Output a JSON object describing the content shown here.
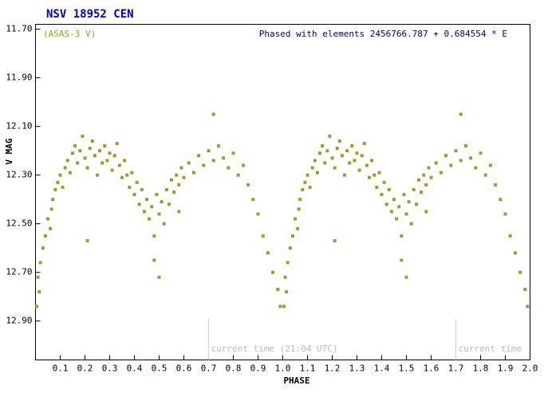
{
  "chart_data": {
    "type": "scatter",
    "title": "NSV 18952 CEN",
    "subtitle": "Phased with elements 2456766.787 + 0.684554 * E",
    "x_label": "PHASE",
    "y_label": "V MAG",
    "xlim": [
      0,
      2.0
    ],
    "ylim": [
      13.06,
      11.68
    ],
    "xticks": [
      0.1,
      0.2,
      0.3,
      0.4,
      0.5,
      0.6,
      0.7,
      0.8,
      0.9,
      {
        "value": 1,
        "label": "1.0"
      },
      1.1,
      1.2,
      1.3,
      1.4,
      1.5,
      1.6,
      1.7,
      1.8,
      1.9,
      {
        "value": 2,
        "label": "2.0"
      }
    ],
    "yticks": [
      {
        "value": 11.7,
        "label": "11.70"
      },
      {
        "value": 11.9,
        "label": "11.90"
      },
      {
        "value": 12.1,
        "label": "12.10"
      },
      {
        "value": 12.3,
        "label": "12.30"
      },
      {
        "value": 12.5,
        "label": "12.50"
      },
      {
        "value": 12.7,
        "label": "12.70"
      },
      {
        "value": 12.9,
        "label": "12.90"
      }
    ],
    "annotations": [
      {
        "x": 0.7,
        "text": "current time (21:04 UTC)"
      },
      {
        "x": 1.7,
        "text": "current time"
      }
    ],
    "series": [
      {
        "name": "(ASAS-3 V)",
        "color": "#a09a2a",
        "x": [
          0.005,
          0.01,
          0.015,
          0.02,
          0.03,
          0.04,
          0.05,
          0.06,
          0.065,
          0.07,
          0.08,
          0.09,
          0.1,
          0.11,
          0.12,
          0.13,
          0.14,
          0.15,
          0.16,
          0.17,
          0.18,
          0.19,
          0.2,
          0.21,
          0.22,
          0.23,
          0.24,
          0.25,
          0.26,
          0.27,
          0.28,
          0.29,
          0.3,
          0.31,
          0.32,
          0.33,
          0.34,
          0.35,
          0.36,
          0.37,
          0.38,
          0.39,
          0.4,
          0.41,
          0.42,
          0.43,
          0.44,
          0.45,
          0.46,
          0.47,
          0.48,
          0.49,
          0.5,
          0.51,
          0.52,
          0.53,
          0.54,
          0.55,
          0.56,
          0.57,
          0.58,
          0.59,
          0.6,
          0.62,
          0.64,
          0.66,
          0.68,
          0.7,
          0.72,
          0.74,
          0.76,
          0.78,
          0.8,
          0.82,
          0.84,
          0.86,
          0.88,
          0.9,
          0.92,
          0.94,
          0.96,
          0.98,
          0.99,
          0.21,
          0.5,
          0.48,
          0.72,
          0.58,
          1.005,
          1.01,
          1.015,
          1.02,
          1.03,
          1.04,
          1.05,
          1.06,
          1.065,
          1.07,
          1.08,
          1.09,
          1.1,
          1.11,
          1.12,
          1.13,
          1.14,
          1.15,
          1.16,
          1.17,
          1.18,
          1.19,
          1.2,
          1.21,
          1.22,
          1.23,
          1.24,
          1.25,
          1.26,
          1.27,
          1.28,
          1.29,
          1.3,
          1.31,
          1.32,
          1.33,
          1.34,
          1.35,
          1.36,
          1.37,
          1.38,
          1.39,
          1.4,
          1.41,
          1.42,
          1.43,
          1.44,
          1.45,
          1.46,
          1.47,
          1.48,
          1.49,
          1.5,
          1.51,
          1.52,
          1.53,
          1.54,
          1.55,
          1.56,
          1.57,
          1.58,
          1.59,
          1.6,
          1.62,
          1.64,
          1.66,
          1.68,
          1.7,
          1.72,
          1.74,
          1.76,
          1.78,
          1.8,
          1.82,
          1.84,
          1.86,
          1.88,
          1.9,
          1.92,
          1.94,
          1.96,
          1.98,
          1.99,
          1.21,
          1.5,
          1.48,
          1.72,
          1.58
        ],
        "values": [
          12.84,
          12.72,
          12.78,
          12.66,
          12.6,
          12.55,
          12.48,
          12.52,
          12.44,
          12.4,
          12.36,
          12.33,
          12.3,
          12.35,
          12.27,
          12.24,
          12.29,
          12.21,
          12.18,
          12.25,
          12.2,
          12.14,
          12.23,
          12.27,
          12.19,
          12.16,
          12.22,
          12.3,
          12.2,
          12.25,
          12.18,
          12.24,
          12.21,
          12.28,
          12.22,
          12.17,
          12.26,
          12.31,
          12.24,
          12.3,
          12.35,
          12.29,
          12.38,
          12.33,
          12.42,
          12.36,
          12.45,
          12.4,
          12.48,
          12.43,
          12.55,
          12.38,
          12.46,
          12.41,
          12.5,
          12.36,
          12.42,
          12.32,
          12.37,
          12.3,
          12.34,
          12.27,
          12.31,
          12.25,
          12.29,
          12.22,
          12.26,
          12.2,
          12.24,
          12.18,
          12.23,
          12.27,
          12.21,
          12.3,
          12.26,
          12.34,
          12.4,
          12.46,
          12.55,
          12.62,
          12.7,
          12.77,
          12.84,
          12.57,
          12.72,
          12.65,
          12.05,
          12.45,
          12.84,
          12.72,
          12.78,
          12.66,
          12.6,
          12.55,
          12.48,
          12.52,
          12.44,
          12.4,
          12.36,
          12.33,
          12.3,
          12.35,
          12.27,
          12.24,
          12.29,
          12.21,
          12.18,
          12.25,
          12.2,
          12.14,
          12.23,
          12.27,
          12.19,
          12.16,
          12.22,
          12.3,
          12.2,
          12.25,
          12.18,
          12.24,
          12.21,
          12.28,
          12.22,
          12.17,
          12.26,
          12.31,
          12.24,
          12.3,
          12.35,
          12.29,
          12.38,
          12.33,
          12.42,
          12.36,
          12.45,
          12.4,
          12.48,
          12.43,
          12.55,
          12.38,
          12.46,
          12.41,
          12.5,
          12.36,
          12.42,
          12.32,
          12.37,
          12.3,
          12.34,
          12.27,
          12.31,
          12.25,
          12.29,
          12.22,
          12.26,
          12.2,
          12.24,
          12.18,
          12.23,
          12.27,
          12.21,
          12.3,
          12.26,
          12.34,
          12.4,
          12.46,
          12.55,
          12.62,
          12.7,
          12.77,
          12.84,
          12.57,
          12.72,
          12.65,
          12.05,
          12.45
        ]
      }
    ]
  }
}
